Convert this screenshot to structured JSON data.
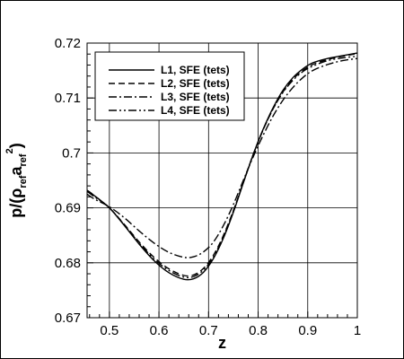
{
  "chart_data": {
    "type": "line",
    "title": "",
    "xlabel": "z",
    "ylabel": "p/(ρ_ref a_ref^2)",
    "ylabel_parts": {
      "p": "p/(ρ",
      "ref1": "ref",
      "a": "a",
      "ref2": "ref",
      "sq": "2",
      "close": ")"
    },
    "xlim": [
      0.455,
      1.0
    ],
    "ylim": [
      0.67,
      0.72
    ],
    "xticks": [
      0.5,
      0.6,
      0.7,
      0.8,
      0.9,
      1.0
    ],
    "xtick_labels": [
      "0.5",
      "0.6",
      "0.7",
      "0.8",
      "0.9",
      "1"
    ],
    "yticks": [
      0.67,
      0.68,
      0.69,
      0.7,
      0.71,
      0.72
    ],
    "ytick_labels": [
      "0.67",
      "0.68",
      "0.69",
      "0.7",
      "0.71",
      "0.72"
    ],
    "grid": true,
    "legend_position": "top-left",
    "series": [
      {
        "name": "L1, SFE (tets)",
        "dash": "solid",
        "x": [
          0.455,
          0.47,
          0.5,
          0.53,
          0.56,
          0.59,
          0.62,
          0.65,
          0.67,
          0.69,
          0.71,
          0.73,
          0.75,
          0.77,
          0.79,
          0.81,
          0.83,
          0.85,
          0.87,
          0.89,
          0.91,
          0.94,
          0.97,
          1.0
        ],
        "y": [
          0.6932,
          0.6922,
          0.69,
          0.6868,
          0.6834,
          0.6804,
          0.6782,
          0.677,
          0.6771,
          0.6783,
          0.6808,
          0.6845,
          0.6892,
          0.6945,
          0.6997,
          0.7043,
          0.7082,
          0.7114,
          0.7137,
          0.7153,
          0.7164,
          0.7172,
          0.7177,
          0.7182
        ]
      },
      {
        "name": "L2, SFE (tets)",
        "dash": "dash",
        "x": [
          0.455,
          0.47,
          0.5,
          0.53,
          0.56,
          0.59,
          0.62,
          0.65,
          0.67,
          0.69,
          0.71,
          0.73,
          0.75,
          0.77,
          0.79,
          0.81,
          0.83,
          0.85,
          0.87,
          0.89,
          0.91,
          0.94,
          0.97,
          1.0
        ],
        "y": [
          0.6932,
          0.6922,
          0.69,
          0.687,
          0.6838,
          0.681,
          0.6789,
          0.6777,
          0.6778,
          0.679,
          0.6814,
          0.685,
          0.6895,
          0.6946,
          0.6997,
          0.7042,
          0.708,
          0.7111,
          0.7134,
          0.715,
          0.7161,
          0.717,
          0.7176,
          0.7181
        ]
      },
      {
        "name": "L3, SFE (tets)",
        "dash": "dashdot",
        "x": [
          0.455,
          0.47,
          0.5,
          0.53,
          0.56,
          0.59,
          0.62,
          0.65,
          0.67,
          0.69,
          0.71,
          0.73,
          0.75,
          0.77,
          0.79,
          0.81,
          0.83,
          0.85,
          0.87,
          0.89,
          0.91,
          0.94,
          0.97,
          1.0
        ],
        "y": [
          0.6925,
          0.6916,
          0.6902,
          0.6882,
          0.6858,
          0.6836,
          0.6819,
          0.681,
          0.6811,
          0.682,
          0.6838,
          0.6868,
          0.6906,
          0.695,
          0.6993,
          0.7032,
          0.7067,
          0.7096,
          0.7119,
          0.7137,
          0.715,
          0.7161,
          0.7168,
          0.7172
        ]
      },
      {
        "name": "L4, SFE (tets)",
        "dash": "dashdotdot",
        "x": [
          0.455,
          0.47,
          0.5,
          0.53,
          0.56,
          0.59,
          0.62,
          0.65,
          0.67,
          0.69,
          0.71,
          0.73,
          0.75,
          0.77,
          0.79,
          0.81,
          0.83,
          0.85,
          0.87,
          0.89,
          0.91,
          0.94,
          0.97,
          1.0
        ],
        "y": [
          0.693,
          0.692,
          0.69,
          0.6869,
          0.6836,
          0.6807,
          0.6786,
          0.6774,
          0.6775,
          0.6787,
          0.6811,
          0.6848,
          0.6894,
          0.6946,
          0.6997,
          0.7042,
          0.708,
          0.711,
          0.7132,
          0.7148,
          0.7158,
          0.7168,
          0.7173,
          0.7176
        ]
      }
    ]
  }
}
